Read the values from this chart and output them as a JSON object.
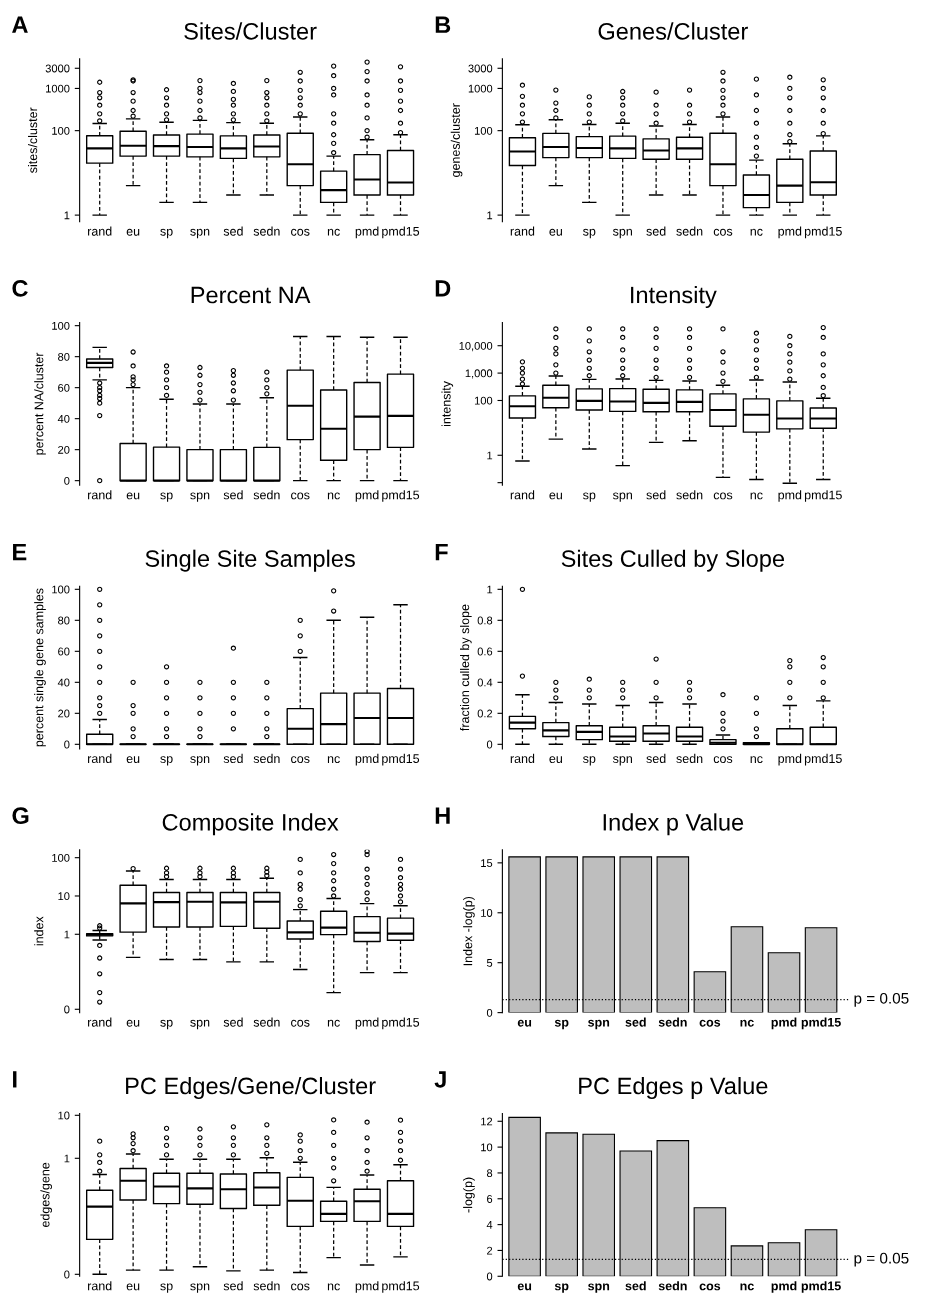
{
  "chart_data": [
    {
      "type": "box",
      "title": "Sites/Cluster",
      "ylabel": "sites/cluster",
      "annotations": [
        "A"
      ],
      "log": true,
      "ylim": [
        0.7,
        5000
      ],
      "yticks": [
        1,
        100,
        1000,
        3000
      ],
      "categories": [
        "rand",
        "eu",
        "sp",
        "spn",
        "sed",
        "sedn",
        "cos",
        "nc",
        "pmd",
        "pmd15"
      ],
      "boxes": [
        {
          "low": 1,
          "q1": 17,
          "median": 38,
          "q3": 76,
          "high": 148,
          "outliers": [
            170,
            250,
            400,
            600,
            800,
            1400
          ]
        },
        {
          "low": 5,
          "q1": 25,
          "median": 44,
          "q3": 97,
          "high": 190,
          "outliers": [
            220,
            300,
            500,
            800,
            1500,
            1600
          ]
        },
        {
          "low": 2,
          "q1": 25,
          "median": 43,
          "q3": 79,
          "high": 158,
          "outliers": [
            180,
            250,
            400,
            600,
            930
          ]
        },
        {
          "low": 2,
          "q1": 24,
          "median": 41,
          "q3": 83,
          "high": 175,
          "outliers": [
            200,
            300,
            500,
            800,
            1000,
            1530
          ]
        },
        {
          "low": 3,
          "q1": 22,
          "median": 38,
          "q3": 75,
          "high": 155,
          "outliers": [
            180,
            250,
            400,
            550,
            850,
            1310
          ]
        },
        {
          "low": 3,
          "q1": 24,
          "median": 42,
          "q3": 79,
          "high": 150,
          "outliers": [
            170,
            250,
            400,
            600,
            800,
            1530
          ]
        },
        {
          "low": 1,
          "q1": 5,
          "median": 16,
          "q3": 87,
          "high": 211,
          "outliers": [
            250,
            400,
            600,
            900,
            1500,
            2410
          ]
        },
        {
          "low": 1,
          "q1": 2,
          "median": 3.9,
          "q3": 11,
          "high": 25,
          "outliers": [
            30,
            50,
            80,
            150,
            250,
            700,
            1000,
            2000,
            3380
          ]
        },
        {
          "low": 1,
          "q1": 3,
          "median": 7,
          "q3": 27,
          "high": 61,
          "outliers": [
            70,
            100,
            200,
            400,
            700,
            1500,
            2500,
            4200
          ]
        },
        {
          "low": 1,
          "q1": 3,
          "median": 5.9,
          "q3": 34,
          "high": 80,
          "outliers": [
            90,
            150,
            300,
            500,
            900,
            1500,
            3250
          ]
        }
      ]
    },
    {
      "type": "box",
      "title": "Genes/Cluster",
      "ylabel": "genes/cluster",
      "annotations": [
        "B"
      ],
      "log": true,
      "ylim": [
        0.7,
        5000
      ],
      "yticks": [
        1,
        100,
        1000,
        3000
      ],
      "categories": [
        "rand",
        "eu",
        "sp",
        "spn",
        "sed",
        "sedn",
        "cos",
        "nc",
        "pmd",
        "pmd15"
      ],
      "boxes": [
        {
          "low": 1,
          "q1": 15,
          "median": 32,
          "q3": 68,
          "high": 138,
          "outliers": [
            160,
            250,
            400,
            650,
            1190
          ]
        },
        {
          "low": 5,
          "q1": 23,
          "median": 41,
          "q3": 86,
          "high": 181,
          "outliers": [
            200,
            300,
            450,
            915
          ]
        },
        {
          "low": 2,
          "q1": 23,
          "median": 39,
          "q3": 72,
          "high": 140,
          "outliers": [
            160,
            250,
            400,
            630
          ]
        },
        {
          "low": 1,
          "q1": 22,
          "median": 38,
          "q3": 74,
          "high": 150,
          "outliers": [
            170,
            250,
            400,
            600,
            845
          ]
        },
        {
          "low": 3,
          "q1": 21,
          "median": 34,
          "q3": 64,
          "high": 129,
          "outliers": [
            150,
            250,
            400,
            815
          ]
        },
        {
          "low": 3,
          "q1": 21,
          "median": 38,
          "q3": 70,
          "high": 140,
          "outliers": [
            160,
            250,
            400,
            915
          ]
        },
        {
          "low": 1,
          "q1": 5,
          "median": 16,
          "q3": 87,
          "high": 211,
          "outliers": [
            250,
            400,
            600,
            900,
            1500,
            2410
          ]
        },
        {
          "low": 1,
          "q1": 1.5,
          "median": 3,
          "q3": 8.9,
          "high": 20,
          "outliers": [
            25,
            40,
            70,
            150,
            300,
            700,
            1660
          ]
        },
        {
          "low": 1,
          "q1": 2,
          "median": 5,
          "q3": 21,
          "high": 49,
          "outliers": [
            55,
            80,
            150,
            300,
            600,
            1000,
            1840
          ]
        },
        {
          "low": 1,
          "q1": 3,
          "median": 6,
          "q3": 33,
          "high": 75,
          "outliers": [
            85,
            150,
            300,
            600,
            1000,
            1600
          ]
        }
      ]
    },
    {
      "type": "box",
      "title": "Percent NA",
      "ylabel": "percent NA/cluster",
      "annotations": [
        "C"
      ],
      "ylim": [
        -3,
        102
      ],
      "yticks": [
        0,
        20,
        40,
        60,
        80,
        100
      ],
      "categories": [
        "rand",
        "eu",
        "sp",
        "spn",
        "sed",
        "sedn",
        "cos",
        "nc",
        "pmd",
        "pmd15"
      ],
      "boxes": [
        {
          "low": 65,
          "q1": 73,
          "median": 76,
          "q3": 78.5,
          "high": 86,
          "outliers": [
            0,
            42,
            50,
            53,
            55,
            58,
            60,
            63
          ]
        },
        {
          "low": 0,
          "q1": 0,
          "median": 0,
          "q3": 24,
          "high": 60,
          "outliers": [
            62,
            65,
            67,
            74,
            83
          ]
        },
        {
          "low": 0,
          "q1": 0,
          "median": 0,
          "q3": 21.6,
          "high": 52.5,
          "outliers": [
            55,
            60,
            65,
            70,
            74
          ]
        },
        {
          "low": 0,
          "q1": 0,
          "median": 0,
          "q3": 20,
          "high": 49.5,
          "outliers": [
            52,
            57,
            62,
            68,
            73
          ]
        },
        {
          "low": 0,
          "q1": 0,
          "median": 0,
          "q3": 20,
          "high": 49.5,
          "outliers": [
            52,
            58,
            63,
            68,
            71
          ]
        },
        {
          "low": 0,
          "q1": 0,
          "median": 0,
          "q3": 21.5,
          "high": 53.5,
          "outliers": [
            56,
            60,
            65,
            70
          ]
        },
        {
          "low": 0,
          "q1": 26.5,
          "median": 48.3,
          "q3": 71.3,
          "high": 93
        },
        {
          "low": 0,
          "q1": 13.2,
          "median": 33.5,
          "q3": 58.5,
          "high": 93
        },
        {
          "low": 0,
          "q1": 20,
          "median": 41.3,
          "q3": 63.3,
          "high": 92.5
        },
        {
          "low": 0,
          "q1": 21.5,
          "median": 41.8,
          "q3": 68.7,
          "high": 92.5
        }
      ]
    },
    {
      "type": "box",
      "title": "Intensity",
      "ylabel": "intensity",
      "annotations": [
        "D"
      ],
      "log": true,
      "ylim": [
        0.08,
        70000
      ],
      "yticks": [
        {
          "value": 0.1,
          "label": null
        },
        1,
        {
          "value": 100,
          "label": "100"
        },
        {
          "value": 1000,
          "label": "1,000"
        },
        {
          "value": 10000,
          "label": "10,000"
        }
      ],
      "categories": [
        "rand",
        "eu",
        "sp",
        "spn",
        "sed",
        "sedn",
        "cos",
        "nc",
        "pmd",
        "pmd15"
      ],
      "boxes": [
        {
          "low": 0.62,
          "q1": 23,
          "median": 62,
          "q3": 148,
          "high": 330,
          "outliers": [
            400,
            600,
            1000,
            1500,
            2570
          ]
        },
        {
          "low": 3.9,
          "q1": 54,
          "median": 125,
          "q3": 358,
          "high": 780,
          "outliers": [
            1000,
            2000,
            5000,
            8000,
            20000,
            41000
          ]
        },
        {
          "low": 1.7,
          "q1": 45,
          "median": 97,
          "q3": 265,
          "high": 590,
          "outliers": [
            800,
            1500,
            3000,
            6000,
            15000,
            41000
          ]
        },
        {
          "low": 0.42,
          "q1": 40,
          "median": 92,
          "q3": 272,
          "high": 607,
          "outliers": [
            800,
            1500,
            3000,
            7000,
            20000,
            41000
          ]
        },
        {
          "low": 2.95,
          "q1": 39,
          "median": 82,
          "q3": 257,
          "high": 543,
          "outliers": [
            700,
            1500,
            3000,
            8000,
            20000,
            41000
          ]
        },
        {
          "low": 3.4,
          "q1": 39,
          "median": 89,
          "q3": 243,
          "high": 514,
          "outliers": [
            700,
            1500,
            3000,
            8000,
            20000,
            41000
          ]
        },
        {
          "low": 0.156,
          "q1": 11.5,
          "median": 45,
          "q3": 174,
          "high": 358,
          "outliers": [
            500,
            1000,
            2500,
            6000,
            41000
          ]
        },
        {
          "low": 0.13,
          "q1": 7,
          "median": 30,
          "q3": 115,
          "high": 558,
          "outliers": [
            700,
            1500,
            3000,
            7000,
            15000,
            28600
          ]
        },
        {
          "low": 0.095,
          "q1": 9.2,
          "median": 22,
          "q3": 97,
          "high": 473,
          "outliers": [
            600,
            1200,
            2500,
            5000,
            10000,
            21800
          ]
        },
        {
          "low": 0.13,
          "q1": 9.7,
          "median": 22,
          "q3": 53,
          "high": 121,
          "outliers": [
            150,
            300,
            800,
            2000,
            5000,
            20000,
            46000
          ]
        }
      ]
    },
    {
      "type": "box",
      "title": "Single Site Samples",
      "ylabel": "percent single gene samples",
      "annotations": [
        "E"
      ],
      "ylim": [
        -3,
        102
      ],
      "yticks": [
        0,
        20,
        40,
        60,
        80,
        100
      ],
      "categories": [
        "rand",
        "eu",
        "sp",
        "spn",
        "sed",
        "sedn",
        "cos",
        "nc",
        "pmd",
        "pmd15"
      ],
      "boxes": [
        {
          "low": 0,
          "q1": 0,
          "median": 0,
          "q3": 6.5,
          "high": 16,
          "outliers": [
            20,
            25,
            30,
            40,
            50,
            60,
            70,
            80,
            90,
            100
          ]
        },
        {
          "low": 0,
          "q1": 0,
          "median": 0,
          "q3": 0,
          "high": 0,
          "outliers": [
            5,
            10,
            20,
            25,
            40
          ]
        },
        {
          "low": 0,
          "q1": 0,
          "median": 0,
          "q3": 0,
          "high": 0,
          "outliers": [
            5,
            10,
            20,
            30,
            40,
            50
          ]
        },
        {
          "low": 0,
          "q1": 0,
          "median": 0,
          "q3": 0,
          "high": 0,
          "outliers": [
            5,
            10,
            20,
            30,
            40
          ]
        },
        {
          "low": 0,
          "q1": 0,
          "median": 0,
          "q3": 0,
          "high": 0,
          "outliers": [
            10,
            20,
            30,
            40,
            62
          ]
        },
        {
          "low": 0,
          "q1": 0,
          "median": 0,
          "q3": 0,
          "high": 0,
          "outliers": [
            5,
            10,
            20,
            30,
            40
          ]
        },
        {
          "low": 0,
          "q1": 0,
          "median": 10,
          "q3": 23,
          "high": 56,
          "outliers": [
            60,
            70,
            80
          ]
        },
        {
          "low": 0,
          "q1": 0,
          "median": 13,
          "q3": 33,
          "high": 80,
          "outliers": [
            86,
            99
          ]
        },
        {
          "low": 0,
          "q1": 0,
          "median": 17,
          "q3": 33,
          "high": 82
        },
        {
          "low": 0,
          "q1": 0,
          "median": 17,
          "q3": 36,
          "high": 90
        }
      ]
    },
    {
      "type": "box",
      "title": "Sites Culled by Slope",
      "ylabel": "fraction culled by slope",
      "annotations": [
        "F"
      ],
      "ylim": [
        -0.03,
        1.02
      ],
      "yticks": [
        0,
        0.2,
        0.4,
        0.6,
        0.8,
        1
      ],
      "categories": [
        "rand",
        "eu",
        "sp",
        "spn",
        "sed",
        "sedn",
        "cos",
        "nc",
        "pmd",
        "pmd15"
      ],
      "boxes": [
        {
          "low": 0,
          "q1": 0.1,
          "median": 0.14,
          "q3": 0.18,
          "high": 0.32,
          "outliers": [
            0.44,
            1
          ]
        },
        {
          "low": 0,
          "q1": 0.05,
          "median": 0.09,
          "q3": 0.14,
          "high": 0.27,
          "outliers": [
            0.3,
            0.35,
            0.4
          ]
        },
        {
          "low": 0,
          "q1": 0.03,
          "median": 0.08,
          "q3": 0.12,
          "high": 0.26,
          "outliers": [
            0.3,
            0.35,
            0.42
          ]
        },
        {
          "low": 0,
          "q1": 0.02,
          "median": 0.05,
          "q3": 0.11,
          "high": 0.25,
          "outliers": [
            0.3,
            0.35,
            0.4
          ]
        },
        {
          "low": 0,
          "q1": 0.02,
          "median": 0.07,
          "q3": 0.12,
          "high": 0.27,
          "outliers": [
            0.3,
            0.4,
            0.55
          ]
        },
        {
          "low": 0,
          "q1": 0.02,
          "median": 0.05,
          "q3": 0.11,
          "high": 0.26,
          "outliers": [
            0.3,
            0.35,
            0.4
          ]
        },
        {
          "low": 0,
          "q1": 0,
          "median": 0.01,
          "q3": 0.03,
          "high": 0.06,
          "outliers": [
            0.1,
            0.15,
            0.2,
            0.32
          ]
        },
        {
          "low": 0,
          "q1": 0,
          "median": 0,
          "q3": 0.01,
          "high": 0.01,
          "outliers": [
            0.05,
            0.1,
            0.2,
            0.3
          ]
        },
        {
          "low": 0,
          "q1": 0,
          "median": 0,
          "q3": 0.1,
          "high": 0.25,
          "outliers": [
            0.3,
            0.4,
            0.5,
            0.54
          ]
        },
        {
          "low": 0,
          "q1": 0,
          "median": 0,
          "q3": 0.11,
          "high": 0.28,
          "outliers": [
            0.3,
            0.4,
            0.5,
            0.56
          ]
        }
      ]
    },
    {
      "type": "box",
      "title": "Composite Index",
      "ylabel": "index",
      "annotations": [
        "G"
      ],
      "log": true,
      "ylim": [
        0.009,
        160
      ],
      "yticks": [
        {
          "value": 0.011,
          "label": "0"
        },
        1,
        10,
        100
      ],
      "categories": [
        "rand",
        "eu",
        "sp",
        "spn",
        "sed",
        "sedn",
        "cos",
        "nc",
        "pmd",
        "pmd15"
      ],
      "boxes": [
        {
          "low": 0.71,
          "q1": 0.91,
          "median": 0.98,
          "q3": 1.04,
          "high": 1.26,
          "outliers": [
            0.017,
            0.03,
            0.093,
            0.24,
            0.51,
            1.45,
            1.67
          ]
        },
        {
          "low": 0.25,
          "q1": 1.14,
          "median": 6.4,
          "q3": 19,
          "high": 45,
          "outliers": [
            52
          ]
        },
        {
          "low": 0.22,
          "q1": 1.55,
          "median": 6.9,
          "q3": 12.3,
          "high": 27,
          "outliers": [
            32,
            40,
            53
          ]
        },
        {
          "low": 0.22,
          "q1": 1.55,
          "median": 7.1,
          "q3": 12.3,
          "high": 27,
          "outliers": [
            32,
            40,
            53
          ]
        },
        {
          "low": 0.19,
          "q1": 1.61,
          "median": 6.8,
          "q3": 12.3,
          "high": 27,
          "outliers": [
            32,
            40,
            53
          ]
        },
        {
          "low": 0.19,
          "q1": 1.44,
          "median": 7.1,
          "q3": 12.3,
          "high": 29,
          "outliers": [
            34,
            42,
            53
          ]
        },
        {
          "low": 0.12,
          "q1": 0.75,
          "median": 1.12,
          "q3": 2.22,
          "high": 4.4,
          "outliers": [
            5.5,
            8,
            15,
            20,
            40,
            90
          ]
        },
        {
          "low": 0.03,
          "q1": 0.98,
          "median": 1.49,
          "q3": 4,
          "high": 8.6,
          "outliers": [
            10,
            15,
            25,
            40,
            70,
            121
          ]
        },
        {
          "low": 0.1,
          "q1": 0.65,
          "median": 1.1,
          "q3": 2.9,
          "high": 6.3,
          "outliers": [
            8,
            12,
            20,
            30,
            50,
            120,
            146
          ]
        },
        {
          "low": 0.1,
          "q1": 0.7,
          "median": 1.04,
          "q3": 2.64,
          "high": 5.55,
          "outliers": [
            7,
            10,
            15,
            20,
            30,
            50,
            90
          ]
        }
      ]
    },
    {
      "type": "bar",
      "title": "Index p Value",
      "ylabel": "Index -log(p)",
      "annotations": [
        "H",
        "p = 0.05"
      ],
      "ylim": [
        0,
        16.3
      ],
      "yticks": [
        0,
        5,
        10,
        15
      ],
      "color": "#bebebe",
      "categories": [
        "eu",
        "sp",
        "spn",
        "sed",
        "sedn",
        "cos",
        "nc",
        "pmd",
        "pmd15"
      ],
      "values": [
        15.6,
        15.6,
        15.6,
        15.6,
        15.6,
        4.1,
        8.6,
        6.0,
        8.5
      ],
      "ref_lines": [
        {
          "axis": "y",
          "value": 1.3,
          "line_style": "dotted"
        }
      ]
    },
    {
      "type": "box",
      "title": "PC Edges/Gene/Cluster",
      "ylabel": "edges/gene",
      "annotations": [
        "I"
      ],
      "log": true,
      "ylim": [
        0.0018,
        11
      ],
      "yticks": [
        {
          "value": 0.002,
          "label": "0"
        },
        1,
        10
      ],
      "categories": [
        "rand",
        "eu",
        "sp",
        "spn",
        "sed",
        "sedn",
        "cos",
        "nc",
        "pmd",
        "pmd15"
      ],
      "boxes": [
        {
          "low": 0.002,
          "q1": 0.013,
          "median": 0.075,
          "q3": 0.18,
          "high": 0.42,
          "outliers": [
            0.5,
            0.8,
            1.2,
            2.5
          ]
        },
        {
          "low": 0.0025,
          "q1": 0.107,
          "median": 0.3,
          "q3": 0.58,
          "high": 1.26,
          "outliers": [
            1.5,
            2.2,
            3,
            3.7
          ]
        },
        {
          "low": 0.0025,
          "q1": 0.088,
          "median": 0.22,
          "q3": 0.45,
          "high": 0.95,
          "outliers": [
            1.2,
            2,
            3,
            4.97
          ]
        },
        {
          "low": 0.003,
          "q1": 0.085,
          "median": 0.2,
          "q3": 0.45,
          "high": 0.95,
          "outliers": [
            1.2,
            2,
            3,
            4.8
          ]
        },
        {
          "low": 0.0024,
          "q1": 0.068,
          "median": 0.19,
          "q3": 0.43,
          "high": 0.95,
          "outliers": [
            1.2,
            2,
            3,
            5.4
          ]
        },
        {
          "low": 0.0025,
          "q1": 0.081,
          "median": 0.21,
          "q3": 0.46,
          "high": 1.03,
          "outliers": [
            1.3,
            2,
            3,
            6
          ]
        },
        {
          "low": 0.0022,
          "q1": 0.026,
          "median": 0.103,
          "q3": 0.36,
          "high": 0.81,
          "outliers": [
            1,
            1.5,
            2.5,
            3.5
          ]
        },
        {
          "low": 0.0049,
          "q1": 0.034,
          "median": 0.051,
          "q3": 0.1,
          "high": 0.21,
          "outliers": [
            0.3,
            0.6,
            1,
            2,
            4,
            7.8
          ]
        },
        {
          "low": 0.0033,
          "q1": 0.034,
          "median": 0.1,
          "q3": 0.19,
          "high": 0.41,
          "outliers": [
            0.5,
            0.8,
            1.5,
            3,
            6.9
          ]
        },
        {
          "low": 0.0051,
          "q1": 0.026,
          "median": 0.051,
          "q3": 0.3,
          "high": 0.71,
          "outliers": [
            0.9,
            1.5,
            2.5,
            4,
            7.7
          ]
        }
      ]
    },
    {
      "type": "bar",
      "title": "PC Edges p Value",
      "ylabel": "-log(p)",
      "annotations": [
        "J",
        "p = 0.05"
      ],
      "ylim": [
        0,
        12.6
      ],
      "yticks": [
        0,
        2,
        4,
        6,
        8,
        10,
        12
      ],
      "color": "#bebebe",
      "categories": [
        "eu",
        "sp",
        "spn",
        "sed",
        "sedn",
        "cos",
        "nc",
        "pmd",
        "pmd15"
      ],
      "values": [
        12.3,
        11.1,
        11.0,
        9.7,
        10.5,
        5.3,
        2.35,
        2.6,
        3.6
      ],
      "ref_lines": [
        {
          "axis": "y",
          "value": 1.3,
          "line_style": "dotted"
        }
      ]
    }
  ]
}
